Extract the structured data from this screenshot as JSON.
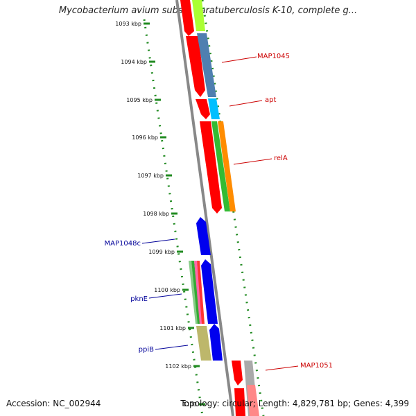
{
  "title": "Mycobacterium avium subsp. paratuberculosis K-10, complete g...",
  "footer": {
    "accession": "Accession: NC_002944",
    "summary": "Topology: circular; Length: 4,829,781 bp; Genes: 4,399"
  },
  "scale_ticks": [
    "1093 kbp",
    "1094 kbp",
    "1095 kbp",
    "1096 kbp",
    "1097 kbp",
    "1098 kbp",
    "1099 kbp",
    "1100 kbp",
    "1101 kbp",
    "1102 kbp",
    "1103"
  ],
  "gene_labels": [
    {
      "name": "MAP1045",
      "color": "#cc0000"
    },
    {
      "name": "apt",
      "color": "#cc0000"
    },
    {
      "name": "relA",
      "color": "#cc0000"
    },
    {
      "name": "MAP1048c",
      "color": "#000099"
    },
    {
      "name": "pknE",
      "color": "#000099"
    },
    {
      "name": "ppiB",
      "color": "#000099"
    },
    {
      "name": "MAP1051",
      "color": "#cc0000"
    }
  ],
  "colors": {
    "forward_cds": "#ff0000",
    "reverse_cds": "#0000ee",
    "backbone": "#888888",
    "scale": "#228b22",
    "cog_green": "#aaff33",
    "cog_steel": "#4f7fb0",
    "cog_cyan": "#00bfff",
    "cog_orange": "#ff8c00",
    "cog_khaki": "#bdb76b",
    "cog_grey": "#aaaaaa"
  }
}
